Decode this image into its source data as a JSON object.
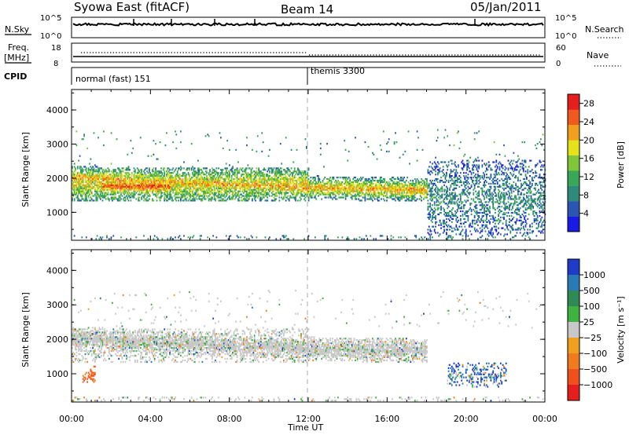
{
  "header": {
    "left": "Syowa East (fitACF)",
    "center": "Beam 14",
    "right": "05/Jan/2011"
  },
  "top_panels": {
    "nsky_label": "N.Sky",
    "nsky_ticks": [
      "10^5",
      "10^0"
    ],
    "nsearch_label": "N.Search",
    "nsearch_ticks": [
      "10^5",
      "10^0"
    ],
    "freq_label": [
      "Freq.",
      "[MHz]"
    ],
    "freq_ticks": [
      "18",
      "8"
    ],
    "nave_label": "Nave",
    "nave_ticks": [
      "60",
      "0"
    ],
    "cpid_label": "CPID",
    "cpid_segments": [
      "normal (fast) 151",
      "themis 3300"
    ]
  },
  "colors": {
    "grey": "#c8c8c8",
    "dashed_line": "#aaaaaa"
  },
  "chart_data": [
    {
      "type": "heatmap",
      "name": "power",
      "ylabel": "Slant Range [km]",
      "xlabel": "Time UT",
      "x_ticks": [
        "00:00",
        "04:00",
        "08:00",
        "12:00",
        "16:00",
        "20:00",
        "00:00"
      ],
      "y_ticks": [
        "1000",
        "2000",
        "3000",
        "4000"
      ],
      "ylim": [
        180,
        4600
      ],
      "xlim_hours": [
        0,
        24
      ],
      "colorbar": {
        "label": "Power [dB]",
        "ticks": [
          "4",
          "8",
          "12",
          "16",
          "20",
          "24",
          "28"
        ],
        "range": [
          0,
          30
        ],
        "colors": [
          "#1a1ae6",
          "#2a55b0",
          "#2f8a7a",
          "#3aa657",
          "#7fc63a",
          "#e6e21a",
          "#f0a01e",
          "#f05a1e",
          "#e61e1e"
        ]
      },
      "features": [
        {
          "t0": 0.0,
          "t1": 12.0,
          "r0": 1300,
          "r1": 2300,
          "level": "moderate-high"
        },
        {
          "t0": 1.5,
          "t1": 5.0,
          "r0": 1500,
          "r1": 2000,
          "level": "high"
        },
        {
          "t0": 13.0,
          "t1": 18.0,
          "r0": 1500,
          "r1": 1900,
          "level": "moderate"
        },
        {
          "t0": 18.0,
          "t1": 24.0,
          "r0": 300,
          "r1": 2500,
          "level": "sparse"
        }
      ]
    },
    {
      "type": "heatmap",
      "name": "velocity",
      "ylabel": "Slant Range [km]",
      "xlabel": "Time UT",
      "x_ticks": [
        "00:00",
        "04:00",
        "08:00",
        "12:00",
        "16:00",
        "20:00",
        "00:00"
      ],
      "y_ticks": [
        "1000",
        "2000",
        "3000",
        "4000"
      ],
      "ylim": [
        180,
        4600
      ],
      "xlim_hours": [
        0,
        24
      ],
      "colorbar": {
        "label": "Velocity  [m s⁻¹]",
        "ticks": [
          "1000",
          "500",
          "100",
          "25",
          "−25",
          "−100",
          "−500",
          "−1000"
        ],
        "colors": [
          "#1e3cc8",
          "#2a7ab8",
          "#2f8a55",
          "#3fb23f",
          "#c8c8c8",
          "#f0a01e",
          "#f07a1e",
          "#f0501e",
          "#e61e1e"
        ]
      },
      "features": [
        {
          "t0": 0.0,
          "t1": 12.0,
          "r0": 1300,
          "r1": 2300,
          "level": "ground scatter (grey)"
        },
        {
          "t0": 0.5,
          "t1": 1.2,
          "r0": 700,
          "r1": 1200,
          "level": "negative (orange)"
        },
        {
          "t0": 19.0,
          "t1": 22.0,
          "r0": 600,
          "r1": 1300,
          "level": "positive (blue)"
        }
      ]
    }
  ]
}
